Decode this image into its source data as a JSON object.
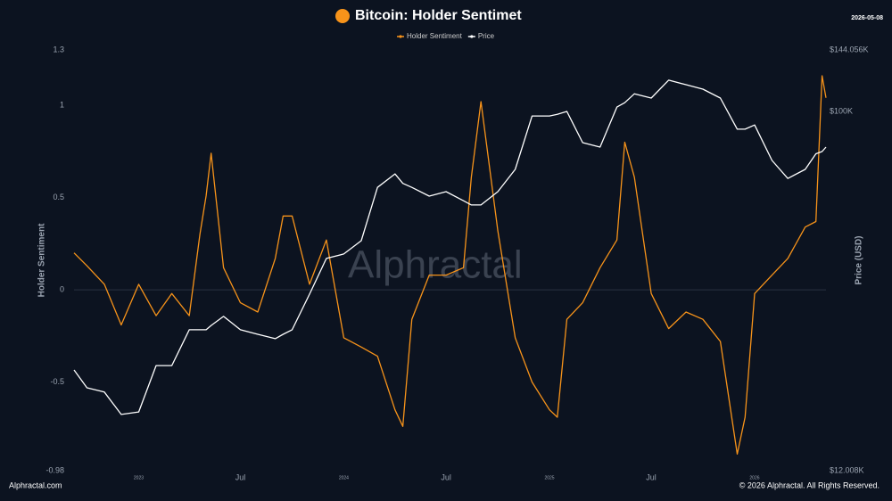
{
  "chart_data": {
    "type": "line",
    "title": "Bitcoin: Holder Sentimet",
    "date": "2026-05-08",
    "ylabel": "Holder Sentiment",
    "y2label": "Price (USD)",
    "watermark": "Alphractal",
    "footer_left": "Alphractal.com",
    "footer_right": "© 2026 Alphractal. All Rights Reserved.",
    "x": [
      "2022-09-08",
      "2022-10-01",
      "2022-11-01",
      "2022-12-01",
      "2023-01-01",
      "2023-02-01",
      "2023-03-01",
      "2023-04-01",
      "2023-04-20",
      "2023-05-01",
      "2023-05-10",
      "2023-06-01",
      "2023-07-01",
      "2023-08-01",
      "2023-09-01",
      "2023-09-15",
      "2023-10-01",
      "2023-11-01",
      "2023-12-01",
      "2024-01-01",
      "2024-02-01",
      "2024-03-01",
      "2024-04-01",
      "2024-04-15",
      "2024-05-01",
      "2024-06-01",
      "2024-07-01",
      "2024-08-01",
      "2024-08-15",
      "2024-09-01",
      "2024-10-01",
      "2024-11-01",
      "2024-12-01",
      "2025-01-01",
      "2025-01-15",
      "2025-02-01",
      "2025-03-01",
      "2025-04-01",
      "2025-05-01",
      "2025-05-15",
      "2025-06-01",
      "2025-07-01",
      "2025-08-01",
      "2025-09-01",
      "2025-10-01",
      "2025-11-01",
      "2025-12-01",
      "2025-12-15",
      "2026-01-01",
      "2026-02-01",
      "2026-03-01",
      "2026-04-01",
      "2026-04-20",
      "2026-05-01",
      "2026-05-08"
    ],
    "series": [
      {
        "name": "Holder Sentiment",
        "color": "#f7931a",
        "axis": "y",
        "values": [
          0.2,
          0.13,
          0.03,
          -0.19,
          0.03,
          -0.14,
          -0.02,
          -0.14,
          0.3,
          0.51,
          0.74,
          0.12,
          -0.07,
          -0.12,
          0.17,
          0.4,
          0.4,
          0.03,
          0.27,
          -0.26,
          -0.31,
          -0.36,
          -0.65,
          -0.74,
          -0.16,
          0.08,
          0.08,
          0.12,
          0.61,
          1.02,
          0.32,
          -0.26,
          -0.5,
          -0.65,
          -0.69,
          -0.16,
          -0.07,
          0.12,
          0.27,
          0.8,
          0.61,
          -0.02,
          -0.21,
          -0.12,
          -0.16,
          -0.28,
          -0.89,
          -0.69,
          -0.02,
          0.08,
          0.17,
          0.34,
          0.37,
          1.16,
          1.04
        ]
      },
      {
        "name": "Price",
        "color": "#ffffff",
        "axis": "y2",
        "values": [
          21770,
          19590,
          19100,
          16740,
          16990,
          22340,
          22340,
          27600,
          27600,
          27600,
          28300,
          29860,
          27600,
          26870,
          26180,
          26870,
          27600,
          34050,
          42050,
          43180,
          46710,
          63980,
          69280,
          65500,
          63980,
          60760,
          62380,
          59130,
          57680,
          57680,
          62380,
          71150,
          97540,
          97540,
          98500,
          100200,
          83330,
          81170,
          102800,
          105500,
          111200,
          108400,
          120500,
          117300,
          114300,
          108400,
          90200,
          90200,
          92500,
          75000,
          67450,
          71150,
          78000,
          79070,
          81170
        ]
      }
    ],
    "xlim": [
      "2022-09-08",
      "2026-05-08"
    ],
    "xticks": [
      {
        "value": "2023-01-01",
        "label": "2023"
      },
      {
        "value": "2023-07-01",
        "label": "Jul"
      },
      {
        "value": "2024-01-01",
        "label": "2024"
      },
      {
        "value": "2024-07-01",
        "label": "Jul"
      },
      {
        "value": "2025-01-01",
        "label": "2025"
      },
      {
        "value": "2025-07-01",
        "label": "Jul"
      },
      {
        "value": "2026-01-01",
        "label": "2026"
      }
    ],
    "ylim": [
      -0.98,
      1.3
    ],
    "yticks": [
      1.3,
      1,
      0.5,
      0,
      -0.5,
      -0.98
    ],
    "y2lim": [
      12008,
      144056
    ],
    "y2ticks": [
      {
        "value": 144056,
        "label": "$144.056K"
      },
      {
        "value": 100000,
        "label": "$100K"
      },
      {
        "value": 12008,
        "label": "$12.008K"
      }
    ],
    "y2log": true,
    "legend": "top"
  }
}
